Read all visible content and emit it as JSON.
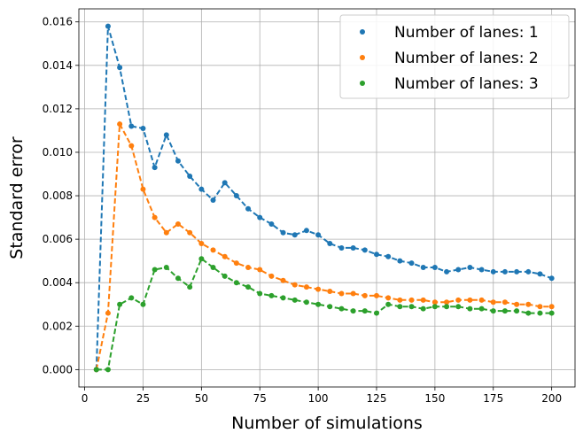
{
  "chart_data": {
    "type": "line",
    "title": "",
    "xlabel": "Number of simulations",
    "ylabel": "Standard error",
    "xlim": [
      -2.5,
      210
    ],
    "ylim": [
      -0.0008,
      0.0166
    ],
    "xticks": [
      0,
      25,
      50,
      75,
      100,
      125,
      150,
      175,
      200
    ],
    "xtick_labels": [
      "0",
      "25",
      "50",
      "75",
      "100",
      "125",
      "150",
      "175",
      "200"
    ],
    "yticks": [
      0.0,
      0.002,
      0.004,
      0.006,
      0.008,
      0.01,
      0.012,
      0.014,
      0.016
    ],
    "ytick_labels": [
      "0.000",
      "0.002",
      "0.004",
      "0.006",
      "0.008",
      "0.010",
      "0.012",
      "0.014",
      "0.016"
    ],
    "grid": true,
    "legend_position": "top-right",
    "line_style": "dashed with circle markers",
    "x": [
      5,
      10,
      15,
      20,
      25,
      30,
      35,
      40,
      45,
      50,
      55,
      60,
      65,
      70,
      75,
      80,
      85,
      90,
      95,
      100,
      105,
      110,
      115,
      120,
      125,
      130,
      135,
      140,
      145,
      150,
      155,
      160,
      165,
      170,
      175,
      180,
      185,
      190,
      195,
      200
    ],
    "series": [
      {
        "name": "Number of lanes: 1",
        "color": "#1f77b4",
        "values": [
          0.0,
          0.0158,
          0.0139,
          0.0112,
          0.0111,
          0.0093,
          0.0108,
          0.0096,
          0.0089,
          0.0083,
          0.0078,
          0.0086,
          0.008,
          0.0074,
          0.007,
          0.0067,
          0.0063,
          0.0062,
          0.0064,
          0.0062,
          0.0058,
          0.0056,
          0.0056,
          0.0055,
          0.0053,
          0.0052,
          0.005,
          0.0049,
          0.0047,
          0.0047,
          0.0045,
          0.0046,
          0.0047,
          0.0046,
          0.0045,
          0.0045,
          0.0045,
          0.0045,
          0.0044,
          0.0042
        ]
      },
      {
        "name": "Number of lanes: 2",
        "color": "#ff7f0e",
        "values": [
          0.0,
          0.0026,
          0.0113,
          0.0103,
          0.0083,
          0.007,
          0.0063,
          0.0067,
          0.0063,
          0.0058,
          0.0055,
          0.0052,
          0.0049,
          0.0047,
          0.0046,
          0.0043,
          0.0041,
          0.0039,
          0.0038,
          0.0037,
          0.0036,
          0.0035,
          0.0035,
          0.0034,
          0.0034,
          0.0033,
          0.0032,
          0.0032,
          0.0032,
          0.0031,
          0.0031,
          0.0032,
          0.0032,
          0.0032,
          0.0031,
          0.0031,
          0.003,
          0.003,
          0.0029,
          0.0029
        ]
      },
      {
        "name": "Number of lanes: 3",
        "color": "#2ca02c",
        "values": [
          0.0,
          0.0,
          0.003,
          0.0033,
          0.003,
          0.0046,
          0.0047,
          0.0042,
          0.0038,
          0.0051,
          0.0047,
          0.0043,
          0.004,
          0.0038,
          0.0035,
          0.0034,
          0.0033,
          0.0032,
          0.0031,
          0.003,
          0.0029,
          0.0028,
          0.0027,
          0.0027,
          0.0026,
          0.003,
          0.0029,
          0.0029,
          0.0028,
          0.0029,
          0.0029,
          0.0029,
          0.0028,
          0.0028,
          0.0027,
          0.0027,
          0.0027,
          0.0026,
          0.0026,
          0.0026
        ]
      }
    ]
  }
}
